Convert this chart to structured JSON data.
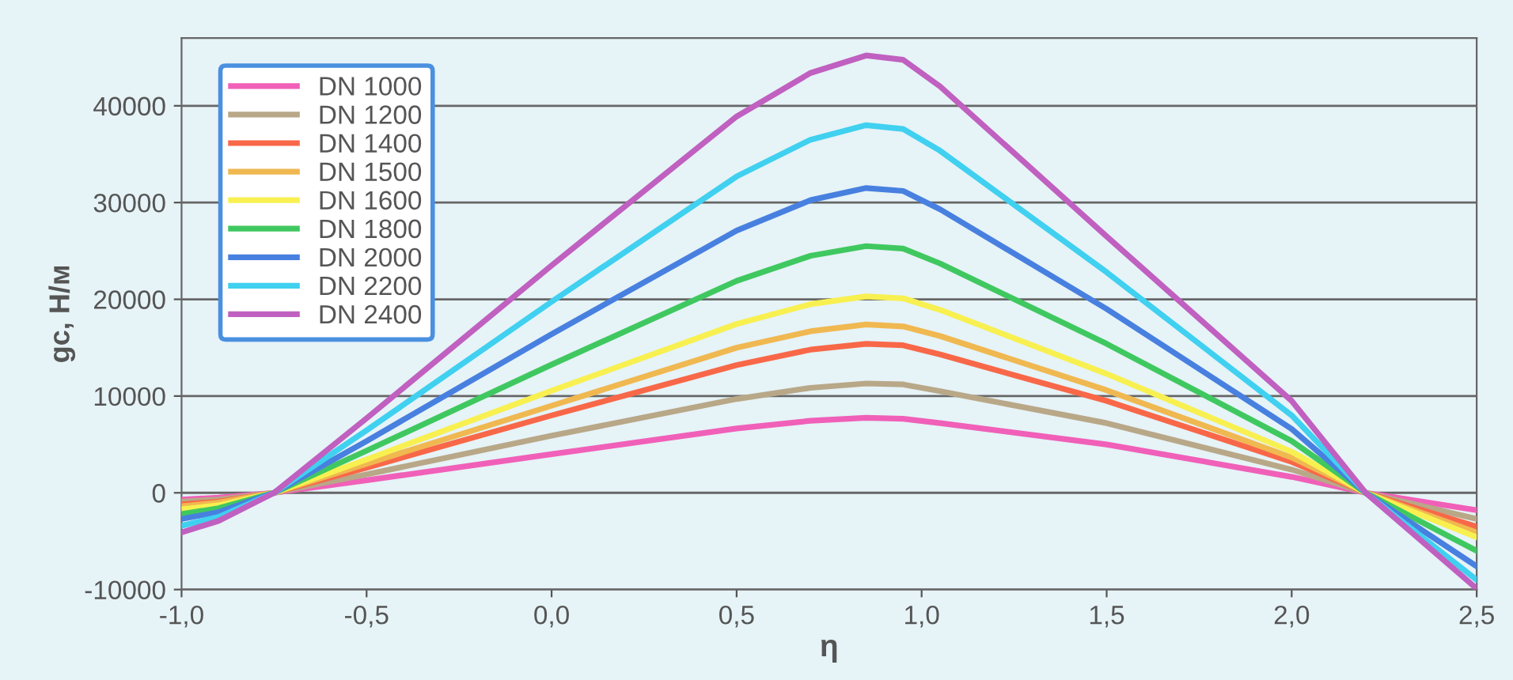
{
  "chart_data": {
    "type": "line",
    "xlabel": "η",
    "ylabel": "gc, Н/м",
    "x": [
      -1,
      -0.9,
      -0.75,
      -0.5,
      0,
      0.5,
      0.7,
      0.85,
      0.95,
      1.05,
      1.5,
      2.0,
      2.2,
      2.5
    ],
    "series": [
      {
        "name": "DN 1000",
        "color": "#f060b8",
        "values": [
          -700,
          -500,
          0,
          1300,
          4000,
          6650,
          7450,
          7750,
          7650,
          7200,
          5000,
          1650,
          0,
          -1800
        ]
      },
      {
        "name": "DN 1200",
        "color": "#b8a888",
        "values": [
          -900,
          -700,
          0,
          1900,
          5900,
          9700,
          10850,
          11300,
          11200,
          10500,
          7200,
          2400,
          0,
          -2700
        ]
      },
      {
        "name": "DN 1400",
        "color": "#f86848",
        "values": [
          -1200,
          -900,
          0,
          2600,
          8000,
          13200,
          14800,
          15400,
          15250,
          14300,
          9500,
          3200,
          0,
          -3500
        ]
      },
      {
        "name": "DN 1500",
        "color": "#f0b850",
        "values": [
          -1400,
          -1000,
          0,
          3000,
          9000,
          15000,
          16700,
          17400,
          17200,
          16200,
          10600,
          3650,
          0,
          -4100
        ]
      },
      {
        "name": "DN 1600",
        "color": "#f8f050",
        "values": [
          -1700,
          -1300,
          0,
          3450,
          10550,
          17450,
          19500,
          20300,
          20100,
          18900,
          12300,
          4250,
          0,
          -4600
        ]
      },
      {
        "name": "DN 1800",
        "color": "#40c860",
        "values": [
          -2200,
          -1600,
          0,
          4350,
          13250,
          21900,
          24500,
          25500,
          25250,
          23700,
          15400,
          5350,
          0,
          -6000
        ]
      },
      {
        "name": "DN 2000",
        "color": "#4880e0",
        "values": [
          -2700,
          -2000,
          0,
          5350,
          16400,
          27100,
          30250,
          31500,
          31200,
          29300,
          19000,
          6600,
          0,
          -7600
        ]
      },
      {
        "name": "DN 2200",
        "color": "#40d0f0",
        "values": [
          -3400,
          -2500,
          0,
          6450,
          19750,
          32700,
          36500,
          38000,
          37600,
          35350,
          22800,
          8000,
          0,
          -9000
        ]
      },
      {
        "name": "DN 2400",
        "color": "#c060c0",
        "values": [
          -4100,
          -2900,
          0,
          7700,
          23500,
          38900,
          43400,
          45200,
          44750,
          42000,
          26500,
          9500,
          0,
          -9900
        ]
      }
    ],
    "xlim": [
      -1,
      2.5
    ],
    "xticks": [
      {
        "value": -1,
        "label": "-1,0"
      },
      {
        "value": -0.5,
        "label": "-0,5"
      },
      {
        "value": 0,
        "label": "0,0"
      },
      {
        "value": 0.5,
        "label": "0,5"
      },
      {
        "value": 1,
        "label": "1,0"
      },
      {
        "value": 1.5,
        "label": "1,5"
      },
      {
        "value": 2,
        "label": "2,0"
      },
      {
        "value": 2.5,
        "label": "2,5"
      }
    ],
    "ylim": [
      -10000,
      47000
    ],
    "yticks": [
      {
        "value": -10000,
        "label": "-10000"
      },
      0,
      10000,
      20000,
      30000,
      40000
    ],
    "grid": "y",
    "legend": "top left",
    "marker": "none",
    "line_style": "solid"
  }
}
